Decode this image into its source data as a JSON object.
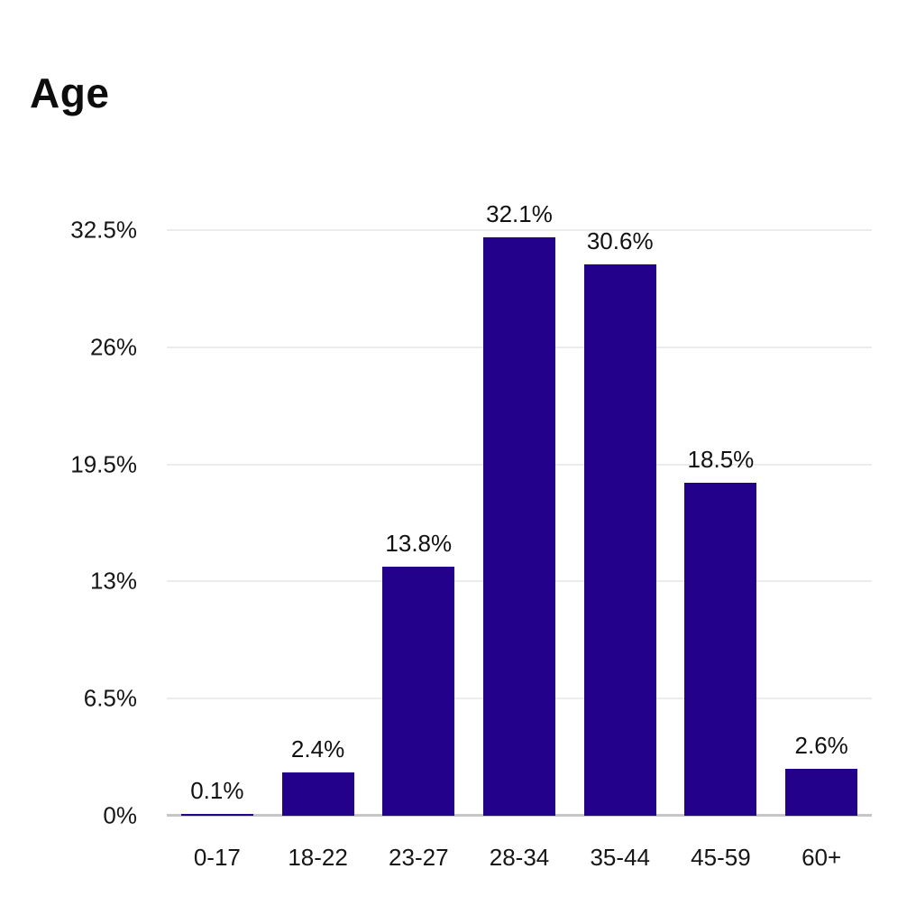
{
  "colors": {
    "bar": "#24018A",
    "gridline": "#ececec",
    "baseline": "#c6c6c6",
    "text": "#161616",
    "background": "#ffffff"
  },
  "chart_data": {
    "type": "bar",
    "title": "Age",
    "categories": [
      "0-17",
      "18-22",
      "23-27",
      "28-34",
      "35-44",
      "45-59",
      "60+"
    ],
    "values": [
      0.1,
      2.4,
      13.8,
      32.1,
      30.6,
      18.5,
      2.6
    ],
    "value_labels": [
      "0.1%",
      "2.4%",
      "13.8%",
      "32.1%",
      "30.6%",
      "18.5%",
      "2.6%"
    ],
    "yticks": [
      {
        "value": 0,
        "label": "0%"
      },
      {
        "value": 6.5,
        "label": "6.5%"
      },
      {
        "value": 13,
        "label": "13%"
      },
      {
        "value": 19.5,
        "label": "19.5%"
      },
      {
        "value": 26,
        "label": "26%"
      },
      {
        "value": 32.5,
        "label": "32.5%"
      }
    ],
    "ylim": [
      0,
      32.5
    ],
    "xlabel": "",
    "ylabel": "",
    "unit": "%",
    "grid": "horizontal",
    "legend": "none"
  }
}
